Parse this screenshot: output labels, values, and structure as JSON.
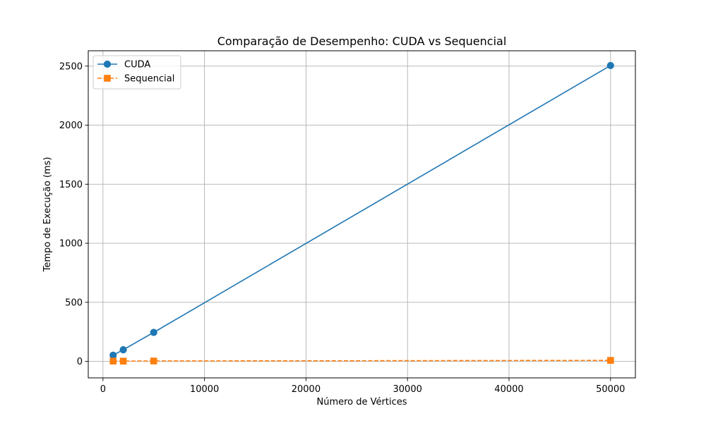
{
  "chart_data": {
    "type": "line",
    "title": "Comparação de Desempenho: CUDA vs Sequencial",
    "xlabel": "Número de Vértices",
    "ylabel": "Tempo de Execução (ms)",
    "xlim": [
      -1450,
      52450
    ],
    "ylim": [
      -140,
      2630
    ],
    "xticks": [
      0,
      10000,
      20000,
      30000,
      40000,
      50000
    ],
    "yticks": [
      0,
      500,
      1000,
      1500,
      2000,
      2500
    ],
    "grid": true,
    "legend_position": "top-left",
    "x": [
      1000,
      2000,
      5000,
      50000
    ],
    "series": [
      {
        "name": "CUDA",
        "values": [
          52,
          98,
          245,
          2505
        ],
        "color": "#1f77b4",
        "marker": "circle",
        "linestyle": "solid"
      },
      {
        "name": "Sequencial",
        "values": [
          2,
          2,
          3,
          8
        ],
        "color": "#ff7f0e",
        "marker": "square",
        "linestyle": "dashed"
      }
    ]
  }
}
